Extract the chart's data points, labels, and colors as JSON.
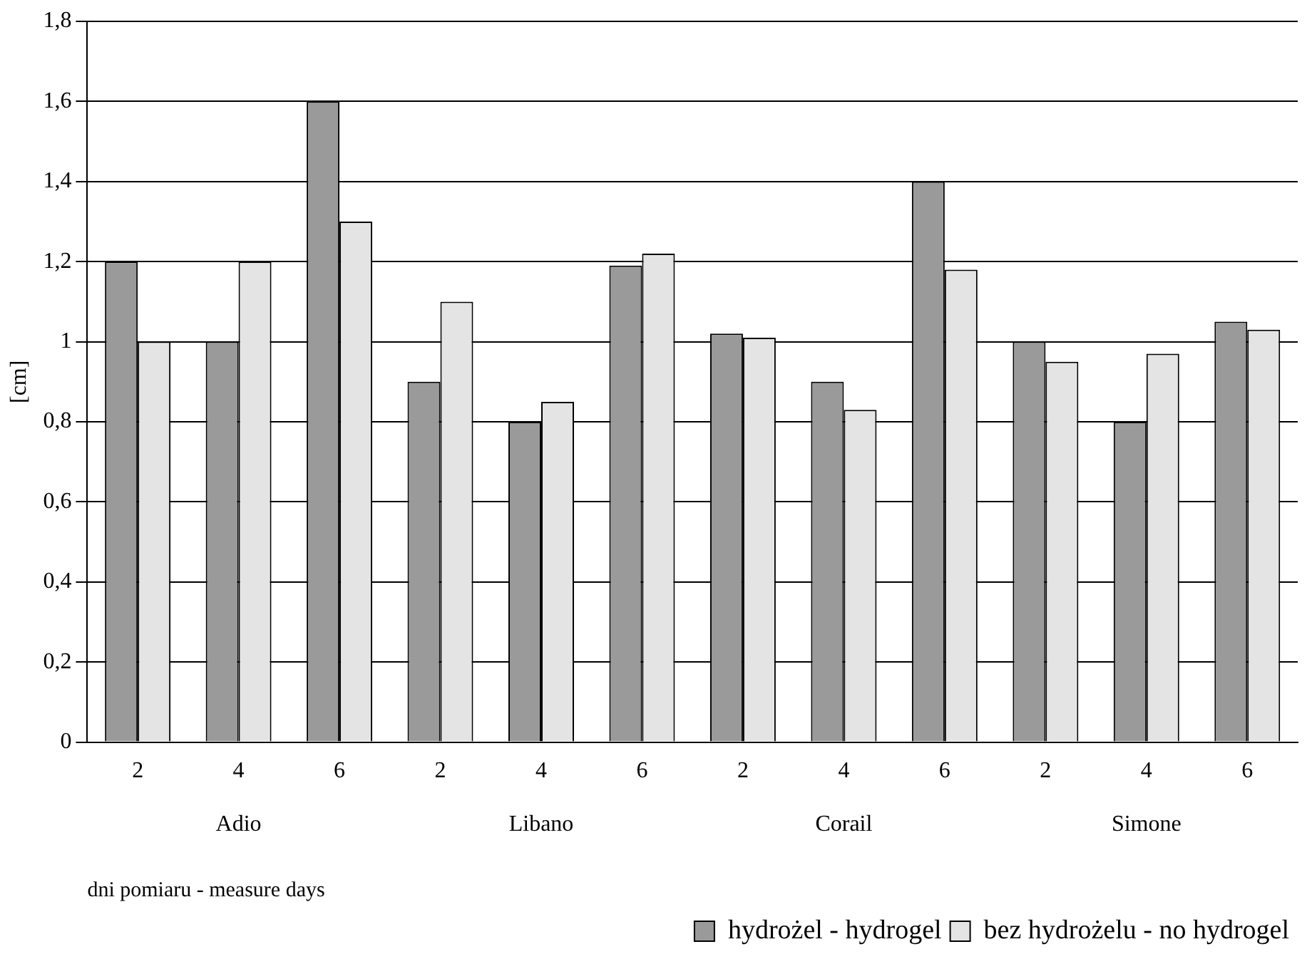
{
  "chart_data": {
    "type": "bar",
    "xlabel": "dni pomiaru - measure days",
    "ylabel": "[cm]",
    "categories": [
      "2",
      "4",
      "6",
      "2",
      "4",
      "6",
      "2",
      "4",
      "6",
      "2",
      "4",
      "6"
    ],
    "series": [
      {
        "name": "hydrożel - hydrogel",
        "color": "#9a9a9a",
        "values": [
          1.2,
          1.0,
          1.6,
          0.9,
          0.8,
          1.19,
          1.02,
          0.9,
          1.4,
          1.0,
          0.8,
          1.05
        ]
      },
      {
        "name": "bez hydrożelu - no hydrogel",
        "color": "#e4e4e4",
        "values": [
          1.0,
          1.2,
          1.3,
          1.1,
          0.85,
          1.22,
          1.01,
          0.83,
          1.18,
          0.95,
          0.97,
          1.03
        ]
      }
    ],
    "annotations": [
      "Adio",
      "Libano",
      "Corail",
      "Simone"
    ],
    "ylim": [
      0,
      1.8
    ],
    "yticks": [
      {
        "value": 0,
        "label": "0"
      },
      {
        "value": 0.2,
        "label": "0,2"
      },
      {
        "value": 0.4,
        "label": "0,4"
      },
      {
        "value": 0.6,
        "label": "0,6"
      },
      {
        "value": 0.8,
        "label": "0,8"
      },
      {
        "value": 1,
        "label": "1"
      },
      {
        "value": 1.2,
        "label": "1,2"
      },
      {
        "value": 1.4,
        "label": "1,4"
      },
      {
        "value": 1.6,
        "label": "1,6"
      },
      {
        "value": 1.8,
        "label": "1,8"
      }
    ],
    "grid": "y",
    "legend": "bottom right"
  }
}
